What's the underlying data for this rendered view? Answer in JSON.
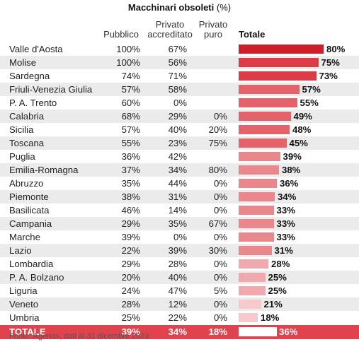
{
  "title_bold": "Macchinari obsoleti",
  "title_unit": " (%)",
  "headers": {
    "pubblico": "Pubblico",
    "accreditato_1": "Privato",
    "accreditato_2": "accreditato",
    "puro_1": "Privato",
    "puro_2": "puro",
    "totale": "Totale"
  },
  "chart_data": {
    "type": "table",
    "title": "Macchinari obsoleti (%)",
    "columns": [
      "Pubblico",
      "Privato accreditato",
      "Privato puro",
      "Totale"
    ],
    "rows": [
      {
        "region": "Valle d'Aosta",
        "pubblico": "100%",
        "accreditato": "67%",
        "puro": "",
        "totale": 80,
        "totale_label": "80%"
      },
      {
        "region": "Molise",
        "pubblico": "100%",
        "accreditato": "56%",
        "puro": "",
        "totale": 75,
        "totale_label": "75%"
      },
      {
        "region": "Sardegna",
        "pubblico": "74%",
        "accreditato": "71%",
        "puro": "",
        "totale": 73,
        "totale_label": "73%"
      },
      {
        "region": "Friuli-Venezia Giulia",
        "pubblico": "57%",
        "accreditato": "58%",
        "puro": "",
        "totale": 57,
        "totale_label": "57%"
      },
      {
        "region": "P. A. Trento",
        "pubblico": "60%",
        "accreditato": "0%",
        "puro": "",
        "totale": 55,
        "totale_label": "55%"
      },
      {
        "region": "Calabria",
        "pubblico": "68%",
        "accreditato": "29%",
        "puro": "0%",
        "totale": 49,
        "totale_label": "49%"
      },
      {
        "region": "Sicilia",
        "pubblico": "57%",
        "accreditato": "40%",
        "puro": "20%",
        "totale": 48,
        "totale_label": "48%"
      },
      {
        "region": "Toscana",
        "pubblico": "55%",
        "accreditato": "23%",
        "puro": "75%",
        "totale": 45,
        "totale_label": "45%"
      },
      {
        "region": "Puglia",
        "pubblico": "36%",
        "accreditato": "42%",
        "puro": "",
        "totale": 39,
        "totale_label": "39%"
      },
      {
        "region": "Emilia-Romagna",
        "pubblico": "37%",
        "accreditato": "34%",
        "puro": "80%",
        "totale": 38,
        "totale_label": "38%"
      },
      {
        "region": "Abruzzo",
        "pubblico": "35%",
        "accreditato": "44%",
        "puro": "0%",
        "totale": 36,
        "totale_label": "36%"
      },
      {
        "region": "Piemonte",
        "pubblico": "38%",
        "accreditato": "31%",
        "puro": "0%",
        "totale": 34,
        "totale_label": "34%"
      },
      {
        "region": "Basilicata",
        "pubblico": "46%",
        "accreditato": "14%",
        "puro": "0%",
        "totale": 33,
        "totale_label": "33%"
      },
      {
        "region": "Campania",
        "pubblico": "29%",
        "accreditato": "35%",
        "puro": "67%",
        "totale": 33,
        "totale_label": "33%"
      },
      {
        "region": "Marche",
        "pubblico": "39%",
        "accreditato": "0%",
        "puro": "0%",
        "totale": 33,
        "totale_label": "33%"
      },
      {
        "region": "Lazio",
        "pubblico": "22%",
        "accreditato": "39%",
        "puro": "30%",
        "totale": 31,
        "totale_label": "31%"
      },
      {
        "region": "Lombardia",
        "pubblico": "29%",
        "accreditato": "28%",
        "puro": "0%",
        "totale": 28,
        "totale_label": "28%"
      },
      {
        "region": "P. A. Bolzano",
        "pubblico": "20%",
        "accreditato": "40%",
        "puro": "0%",
        "totale": 25,
        "totale_label": "25%"
      },
      {
        "region": "Liguria",
        "pubblico": "24%",
        "accreditato": "47%",
        "puro": "5%",
        "totale": 25,
        "totale_label": "25%"
      },
      {
        "region": "Veneto",
        "pubblico": "28%",
        "accreditato": "12%",
        "puro": "0%",
        "totale": 21,
        "totale_label": "21%"
      },
      {
        "region": "Umbria",
        "pubblico": "25%",
        "accreditato": "22%",
        "puro": "0%",
        "totale": 18,
        "totale_label": "18%"
      }
    ],
    "total_row": {
      "region": "TOTALE",
      "pubblico": "39%",
      "accreditato": "34%",
      "puro": "18%",
      "totale": 36,
      "totale_label": "36%"
    },
    "bar_colors": [
      "#cc1f2a",
      "#dd3c47",
      "#e4636b",
      "#ea878d",
      "#f0a9ae",
      "#f6c9cc"
    ],
    "total_row_color": "#e0434d"
  },
  "source": "Fonte: Agenas, dati al 31 dicembre 2023"
}
